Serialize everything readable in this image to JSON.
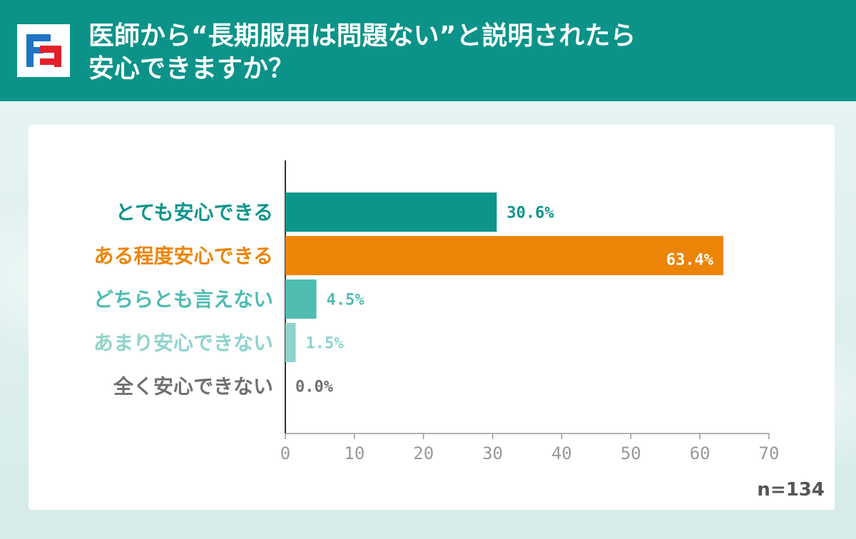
{
  "header": {
    "title": "医師から“長期服用は問題ない”と説明されたら\n安心できますか？",
    "background_color": "#0b9389",
    "logo_icon": "brand-logo-icon"
  },
  "chart_data": {
    "type": "bar",
    "orientation": "horizontal",
    "categories": [
      "とても安心できる",
      "ある程度安心できる",
      "どちらとも言えない",
      "あまり安心できない",
      "全く安心できない"
    ],
    "values": [
      30.6,
      63.4,
      4.5,
      1.5,
      0.0
    ],
    "value_labels": [
      "30.6%",
      "63.4%",
      "4.5%",
      "1.5%",
      "0.0%"
    ],
    "colors": [
      "#0e958b",
      "#ec8507",
      "#4fbcb2",
      "#8fd3cd",
      "#707070"
    ],
    "xticks": [
      0,
      10,
      20,
      30,
      40,
      50,
      60,
      70
    ],
    "xlim": [
      0,
      70
    ],
    "grid": false,
    "sample_size": "n=134"
  }
}
